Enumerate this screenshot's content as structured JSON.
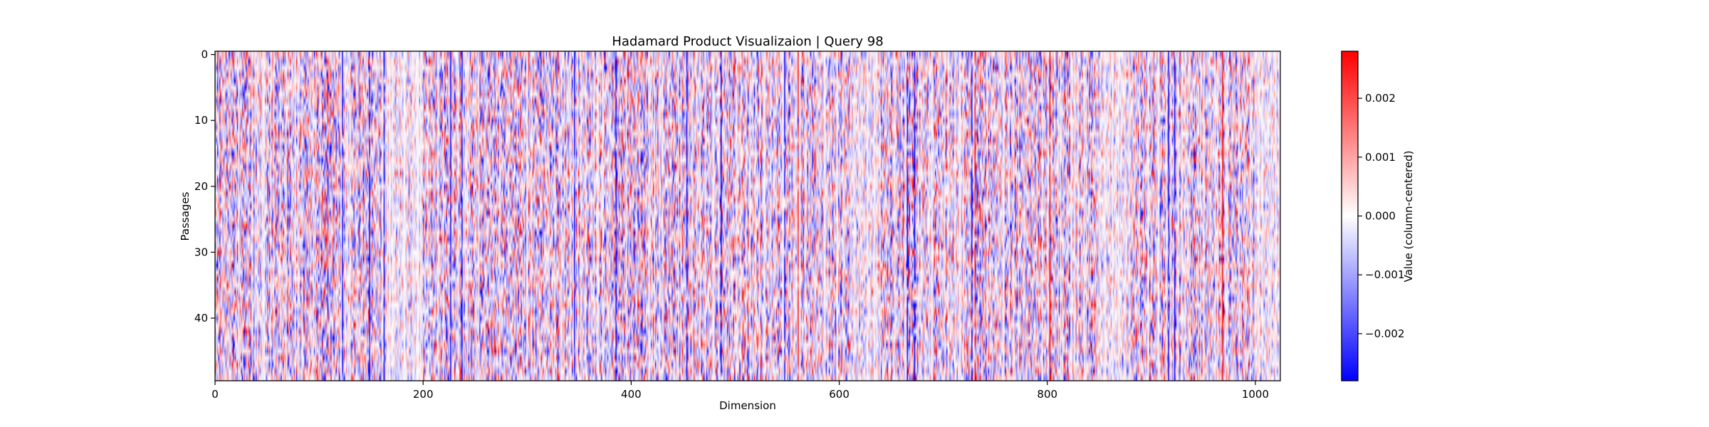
{
  "chart_data": {
    "type": "heatmap",
    "title": "Hadamard Product Visualizaion | Query 98",
    "xlabel": "Dimension",
    "ylabel": "Passages",
    "xlim": [
      0,
      1024
    ],
    "ylim": [
      50,
      0
    ],
    "rows": 50,
    "columns": 1024,
    "x_ticks": [
      0,
      200,
      400,
      600,
      800,
      1000
    ],
    "y_ticks": [
      0,
      10,
      20,
      30,
      40
    ],
    "colormap": "bwr",
    "colormap_colors": [
      "#0000ff",
      "#ffffff",
      "#ff0000"
    ],
    "colorbar": {
      "label": "Value (column-centered)",
      "vmin": -0.0028,
      "vmax": 0.0028,
      "ticks": [
        -0.002,
        -0.001,
        0.0,
        0.001,
        0.002
      ],
      "tick_labels": [
        "−0.002",
        "−0.001",
        "0.000",
        "0.001",
        "0.002"
      ]
    },
    "values_note": "",
    "strong_columns": [
      {
        "dimension": 108,
        "sign": "mixed"
      },
      {
        "dimension": 122,
        "sign": "negative"
      },
      {
        "dimension": 148,
        "sign": "negative"
      },
      {
        "dimension": 162,
        "sign": "negative"
      },
      {
        "dimension": 226,
        "sign": "negative"
      },
      {
        "dimension": 237,
        "sign": "negative"
      },
      {
        "dimension": 345,
        "sign": "negative"
      },
      {
        "dimension": 385,
        "sign": "negative"
      },
      {
        "dimension": 453,
        "sign": "negative"
      },
      {
        "dimension": 486,
        "sign": "negative"
      },
      {
        "dimension": 547,
        "sign": "negative"
      },
      {
        "dimension": 560,
        "sign": "positive"
      },
      {
        "dimension": 665,
        "sign": "negative"
      },
      {
        "dimension": 672,
        "sign": "negative"
      },
      {
        "dimension": 727,
        "sign": "negative"
      },
      {
        "dimension": 730,
        "sign": "positive"
      },
      {
        "dimension": 802,
        "sign": "positive"
      },
      {
        "dimension": 916,
        "sign": "negative"
      },
      {
        "dimension": 922,
        "sign": "negative"
      },
      {
        "dimension": 968,
        "sign": "positive"
      }
    ]
  }
}
